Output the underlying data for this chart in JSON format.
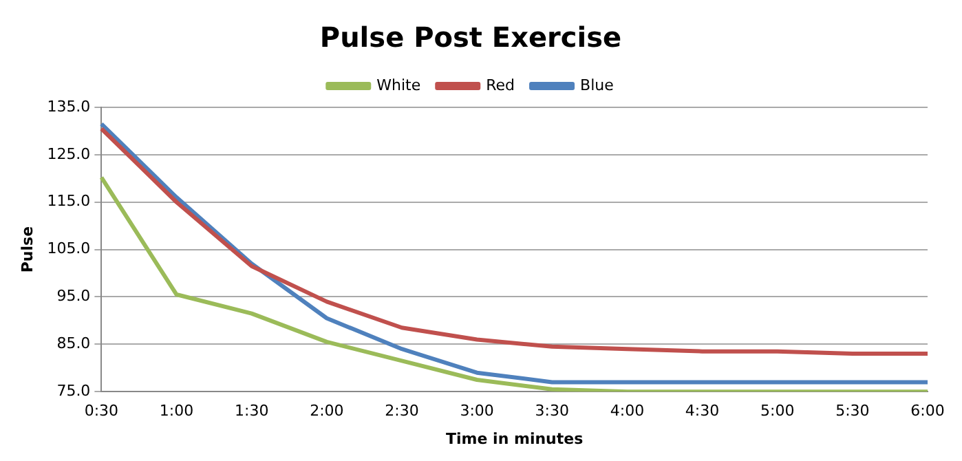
{
  "chart_data": {
    "type": "line",
    "title": "Pulse Post Exercise",
    "xlabel": "Time in minutes",
    "ylabel": "Pulse",
    "categories": [
      "0:30",
      "1:00",
      "1:30",
      "2:00",
      "2:30",
      "3:00",
      "3:30",
      "4:00",
      "4:30",
      "5:00",
      "5:30",
      "6:00"
    ],
    "series": [
      {
        "name": "White",
        "color": "#9bbb59",
        "values": [
          120.2,
          95.5,
          91.5,
          85.5,
          81.5,
          77.5,
          75.5,
          75,
          75,
          75,
          75,
          75
        ]
      },
      {
        "name": "Red",
        "color": "#c0504d",
        "values": [
          130.5,
          115,
          101.5,
          94,
          88.5,
          86,
          84.5,
          84,
          83.5,
          83.5,
          83,
          83
        ]
      },
      {
        "name": "Blue",
        "color": "#4f81bd",
        "values": [
          131.5,
          116,
          102,
          90.5,
          84,
          79,
          77,
          77,
          77,
          77,
          77,
          77
        ]
      }
    ],
    "ylim": [
      75,
      135
    ],
    "yticks": [
      {
        "value": 75,
        "label": "75.0"
      },
      {
        "value": 85,
        "label": "85.0"
      },
      {
        "value": 95,
        "label": "95.0"
      },
      {
        "value": 105,
        "label": "105.0"
      },
      {
        "value": 115,
        "label": "115.0"
      },
      {
        "value": 125,
        "label": "125.0"
      },
      {
        "value": 135,
        "label": "135.0"
      }
    ],
    "grid": "y",
    "legend": "top",
    "marker": "none"
  }
}
